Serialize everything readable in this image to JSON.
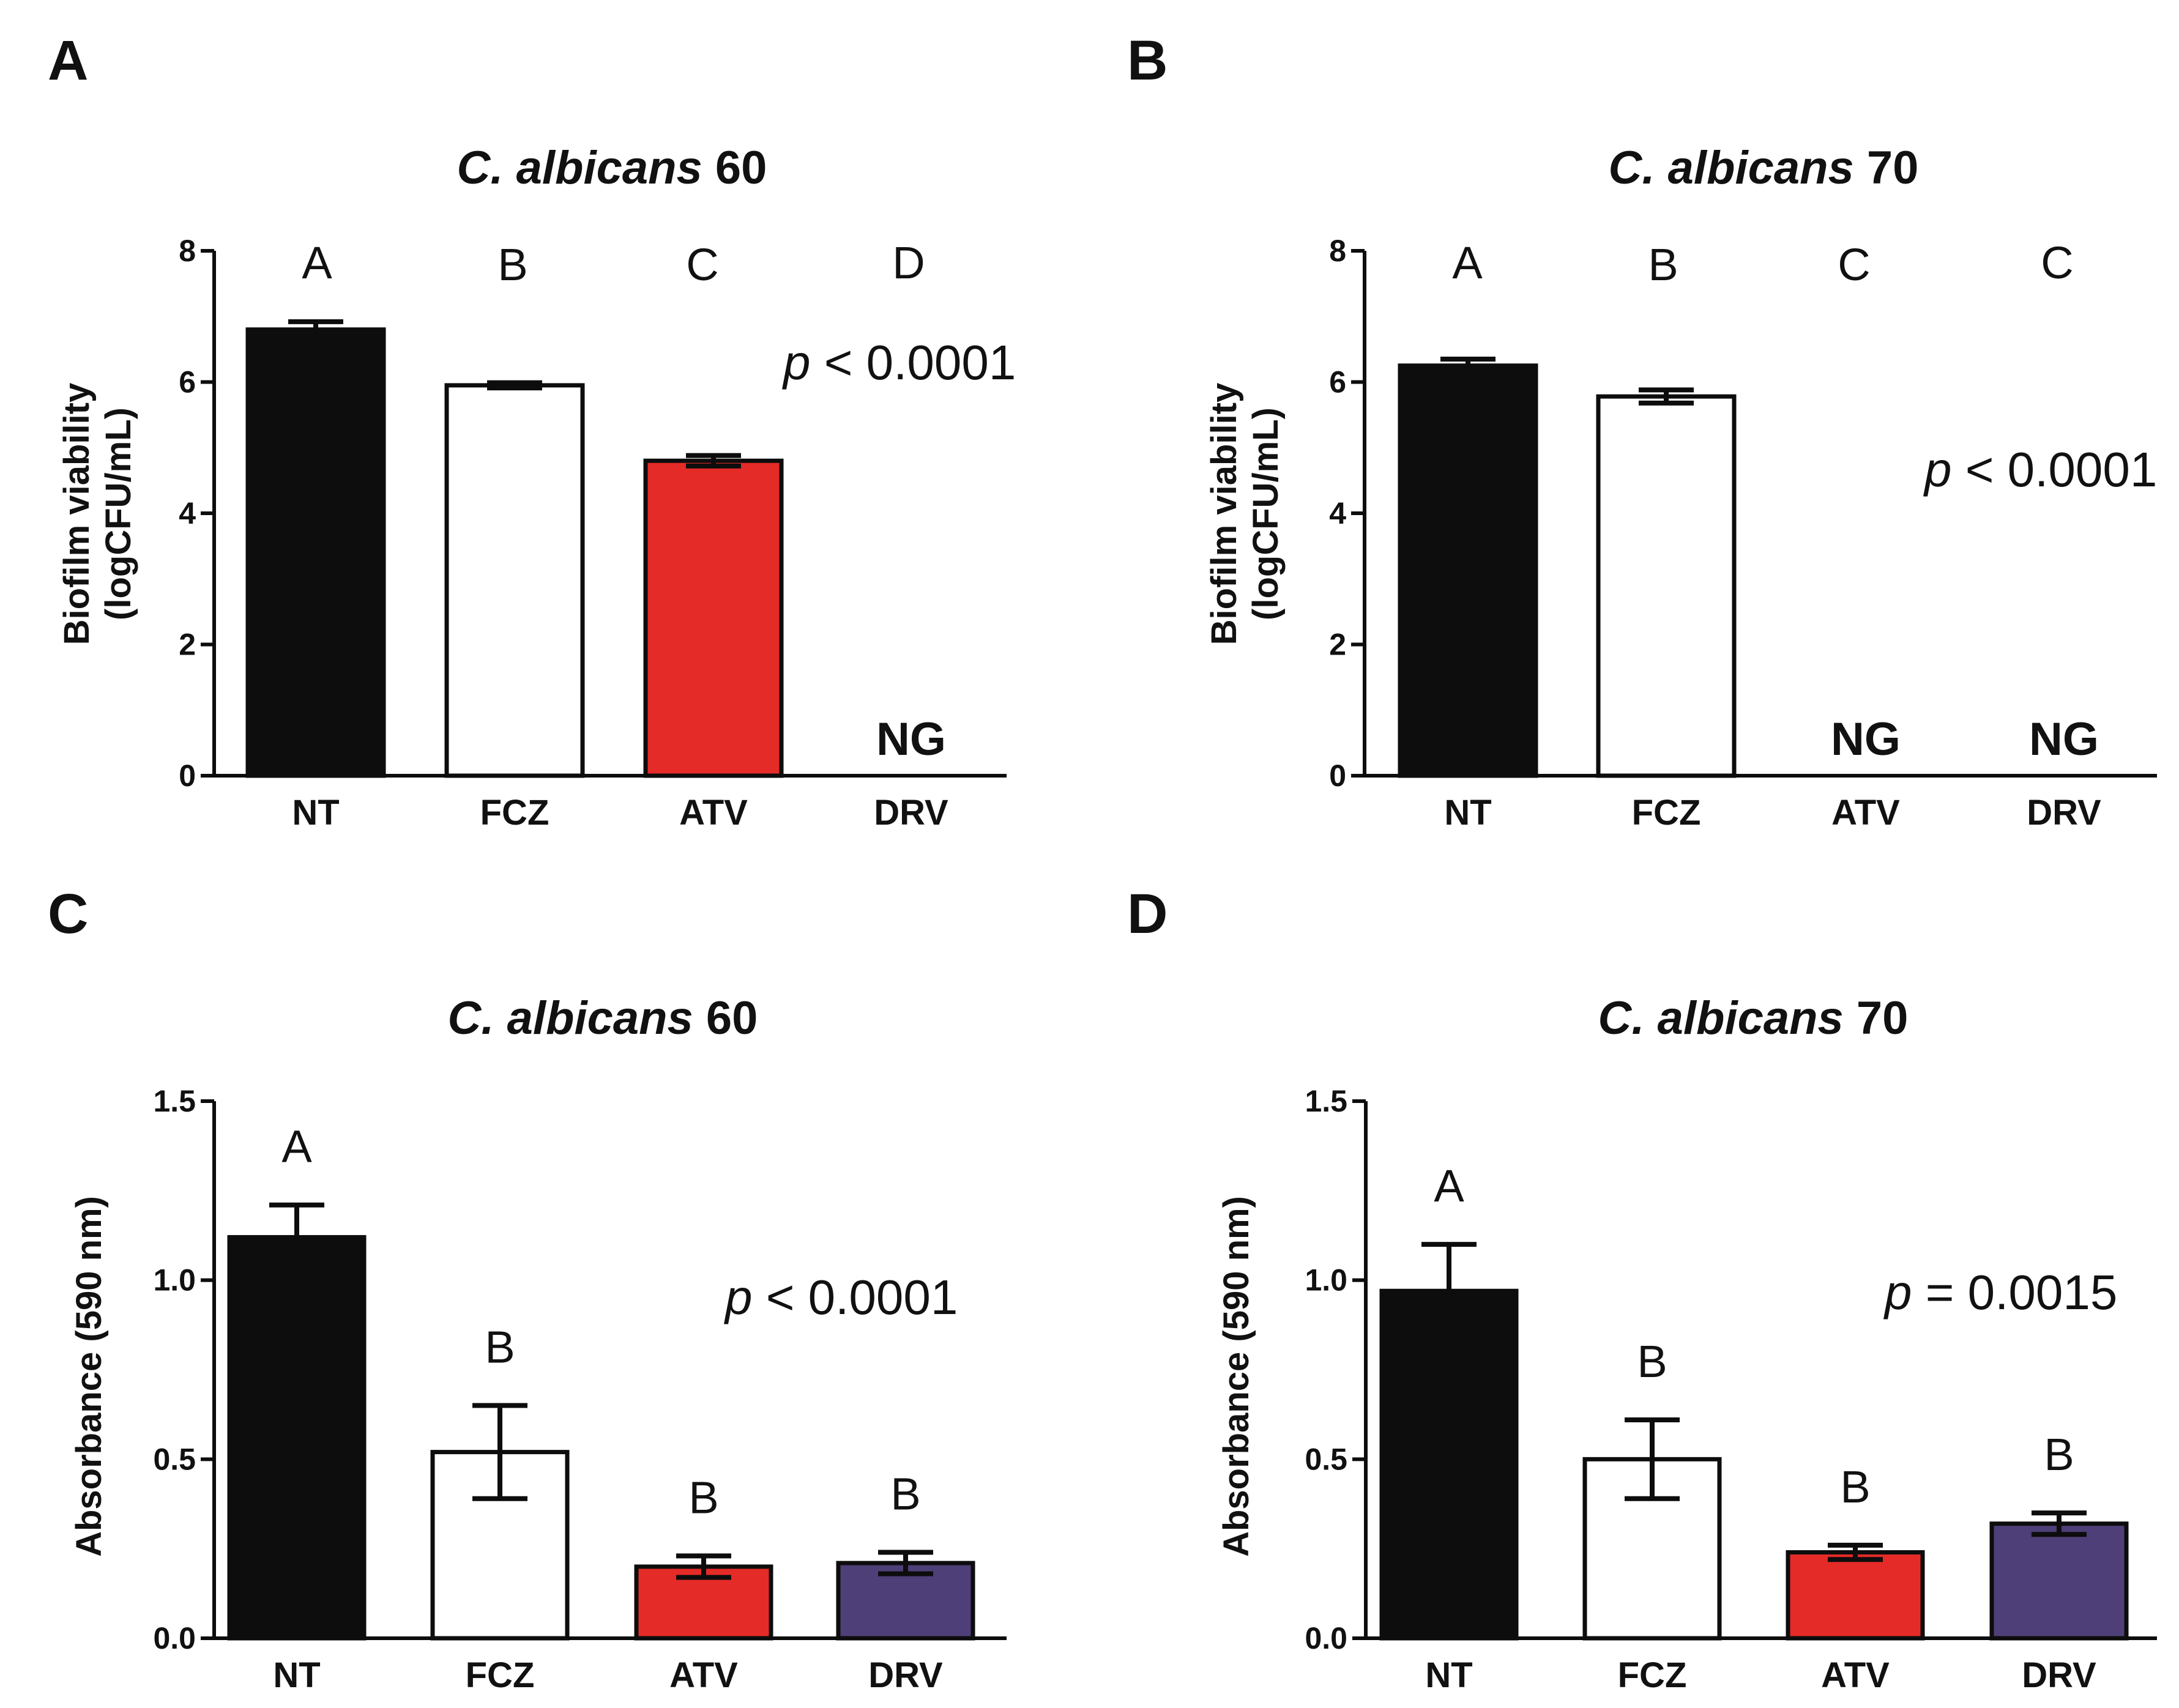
{
  "chart_data": [
    {
      "type": "bar",
      "panel": "A",
      "title_italic": "C. albicans",
      "title_rest": "60",
      "ylabel_line1": "Biofilm viability",
      "ylabel_line2": "(logCFU/mL)",
      "ylim": [
        0,
        8
      ],
      "yticks": [
        "0",
        "2",
        "4",
        "6",
        "8"
      ],
      "categories": [
        "NT",
        "FCZ",
        "ATV",
        "DRV"
      ],
      "values": [
        6.8,
        5.95,
        4.8,
        0
      ],
      "errors": [
        0.12,
        0.04,
        0.08,
        0
      ],
      "colors": [
        "#0d0d0d",
        "#ffffff",
        "#e52b27",
        "#ffffff"
      ],
      "significance": [
        "A",
        "B",
        "C",
        "D"
      ],
      "annotations": [
        "",
        "",
        "",
        "NG"
      ],
      "p_symbol": "p",
      "p_text": " < 0.0001"
    },
    {
      "type": "bar",
      "panel": "B",
      "title_italic": "C. albicans",
      "title_rest": "70",
      "ylabel_line1": "Biofilm viability",
      "ylabel_line2": "(logCFU/mL)",
      "ylim": [
        0,
        8
      ],
      "yticks": [
        "0",
        "2",
        "4",
        "6",
        "8"
      ],
      "categories": [
        "NT",
        "FCZ",
        "ATV",
        "DRV"
      ],
      "values": [
        6.25,
        5.78,
        0,
        0
      ],
      "errors": [
        0.1,
        0.1,
        0,
        0
      ],
      "colors": [
        "#0d0d0d",
        "#ffffff",
        "#ffffff",
        "#ffffff"
      ],
      "significance": [
        "A",
        "B",
        "C",
        "C"
      ],
      "annotations": [
        "",
        "",
        "NG",
        "NG"
      ],
      "p_symbol": "p",
      "p_text": " < 0.0001"
    },
    {
      "type": "bar",
      "panel": "C",
      "title_italic": "C. albicans",
      "title_rest": "60",
      "ylabel_line1": "Absorbance (590 nm)",
      "ylabel_line2": "",
      "ylim": [
        0,
        1.5
      ],
      "yticks": [
        "0.0",
        "0.5",
        "1.0",
        "1.5"
      ],
      "categories": [
        "NT",
        "FCZ",
        "ATV",
        "DRV"
      ],
      "values": [
        1.12,
        0.52,
        0.2,
        0.21
      ],
      "errors": [
        0.09,
        0.13,
        0.03,
        0.03
      ],
      "colors": [
        "#0d0d0d",
        "#ffffff",
        "#e52b27",
        "#4f3f78"
      ],
      "significance": [
        "A",
        "B",
        "B",
        "B"
      ],
      "annotations": [
        "",
        "",
        "",
        ""
      ],
      "p_symbol": "p",
      "p_text": " < 0.0001"
    },
    {
      "type": "bar",
      "panel": "D",
      "title_italic": "C. albicans",
      "title_rest": "70",
      "ylabel_line1": "Absorbance (590 nm)",
      "ylabel_line2": "",
      "ylim": [
        0,
        1.5
      ],
      "yticks": [
        "0.0",
        "0.5",
        "1.0",
        "1.5"
      ],
      "categories": [
        "NT",
        "FCZ",
        "ATV",
        "DRV"
      ],
      "values": [
        0.97,
        0.5,
        0.24,
        0.32
      ],
      "errors": [
        0.13,
        0.11,
        0.02,
        0.03
      ],
      "colors": [
        "#0d0d0d",
        "#ffffff",
        "#e52b27",
        "#4f3f78"
      ],
      "significance": [
        "A",
        "B",
        "B",
        "B"
      ],
      "annotations": [
        "",
        "",
        "",
        ""
      ],
      "p_symbol": "p",
      "p_text": " = 0.0015"
    }
  ]
}
